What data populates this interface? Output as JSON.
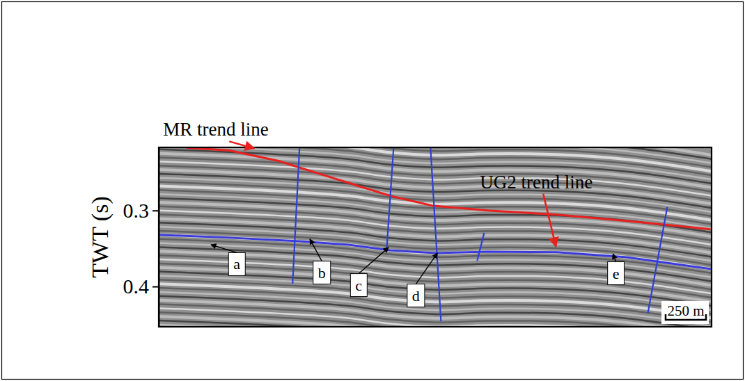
{
  "chart_data": {
    "type": "seismic_section",
    "y_label": "TWT (s)",
    "xlim": [
      0,
      3420
    ],
    "ylim": [
      0.217,
      0.453
    ],
    "yticks": [
      0.3,
      0.4
    ],
    "tick_labels": "y",
    "series": [
      {
        "color": "#e8201e",
        "line_style": "solid",
        "x": [
          172,
          440,
          741,
          1086,
          1431,
          1690,
          2034,
          2465,
          2896,
          3414
        ],
        "values": [
          0.2174,
          0.2211,
          0.2349,
          0.2578,
          0.2807,
          0.2936,
          0.3,
          0.3055,
          0.3138,
          0.3248
        ]
      },
      {
        "color": "#3b3bdc",
        "line_style": "solid",
        "x": [
          0,
          440,
          871,
          1172,
          1431,
          1711,
          2034,
          2465,
          2896,
          3420
        ],
        "values": [
          0.3321,
          0.3358,
          0.3404,
          0.345,
          0.3523,
          0.356,
          0.3541,
          0.355,
          0.3615,
          0.3771
        ]
      },
      {
        "color": "#2f3fd2",
        "line_style": "solid",
        "x": [
          871,
          828
        ],
        "values": [
          0.217,
          0.3963
        ]
      },
      {
        "color": "#2f3fd2",
        "line_style": "solid",
        "x": [
          1453,
          1409
        ],
        "values": [
          0.217,
          0.3541
        ]
      },
      {
        "color": "#2f3fd2",
        "line_style": "solid",
        "x": [
          1681,
          1746
        ],
        "values": [
          0.217,
          0.4459
        ]
      },
      {
        "color": "#2f3fd2",
        "line_style": "solid",
        "x": [
          2013,
          1970
        ],
        "values": [
          0.3294,
          0.3661
        ]
      },
      {
        "color": "#2f3fd2",
        "line_style": "solid",
        "x": [
          3146,
          3026
        ],
        "values": [
          0.2954,
          0.4349
        ]
      }
    ],
    "annotations": [
      {
        "text": "MR trend line",
        "x": 591,
        "y": 0.2183,
        "text_x": 353,
        "text_y": 0.1936,
        "color": "#e8201e"
      },
      {
        "text": "UG2 trend line",
        "x": 2457,
        "y": 0.3477,
        "text_x": 2336,
        "text_y": 0.2624,
        "color": "#e8201e"
      },
      {
        "text": "a",
        "x": 323,
        "y": 0.345,
        "text_x": 483,
        "text_y": 0.3706,
        "color": "#000000"
      },
      {
        "text": "b",
        "x": 935,
        "y": 0.3376,
        "text_x": 1009,
        "text_y": 0.3817,
        "color": "#000000"
      },
      {
        "text": "c",
        "x": 1422,
        "y": 0.3486,
        "text_x": 1237,
        "text_y": 0.3982,
        "color": "#000000"
      },
      {
        "text": "d",
        "x": 1724,
        "y": 0.356,
        "text_x": 1591,
        "text_y": 0.4119,
        "color": "#000000"
      },
      {
        "text": "e",
        "x": 2810,
        "y": 0.3569,
        "text_x": 2828,
        "text_y": 0.3826,
        "color": "#000000"
      }
    ],
    "scale_bar": {
      "length": 250,
      "label": "250 m"
    }
  }
}
